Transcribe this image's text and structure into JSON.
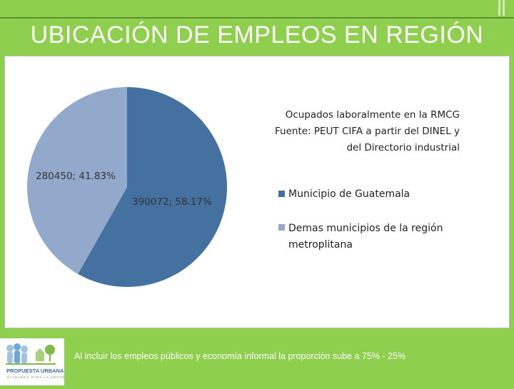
{
  "header": {
    "title": "UBICACIÓN DE EMPLEOS EN REGIÓN"
  },
  "chart_data": {
    "type": "pie",
    "title_lines": [
      "Ocupados laboralmente  en la RMCG",
      "Fuente: PEUT CIFA a partir del DINEL y",
      "del Directorio industrial"
    ],
    "slices": [
      {
        "label": "Municipio de Guatemala",
        "value": 390072,
        "percent": 58.17,
        "data_label": "390072; 58.17%",
        "color": "#44719f"
      },
      {
        "label": "Demas municipios de la región metroplitana",
        "label_lines": [
          "Demas municipios de la región",
          "metroplitana"
        ],
        "value": 280450,
        "percent": 41.83,
        "data_label": "280450; 41.83%",
        "color": "#93a9cb"
      }
    ],
    "legend_position": "right"
  },
  "footer": {
    "note": "Al incluir los empleos públicos y economía informal la proporción sube a 75% - 25%",
    "logo": {
      "name": "PROPUESTA URBANA",
      "tagline": "CIUDADES PARA LA GENTE"
    }
  }
}
